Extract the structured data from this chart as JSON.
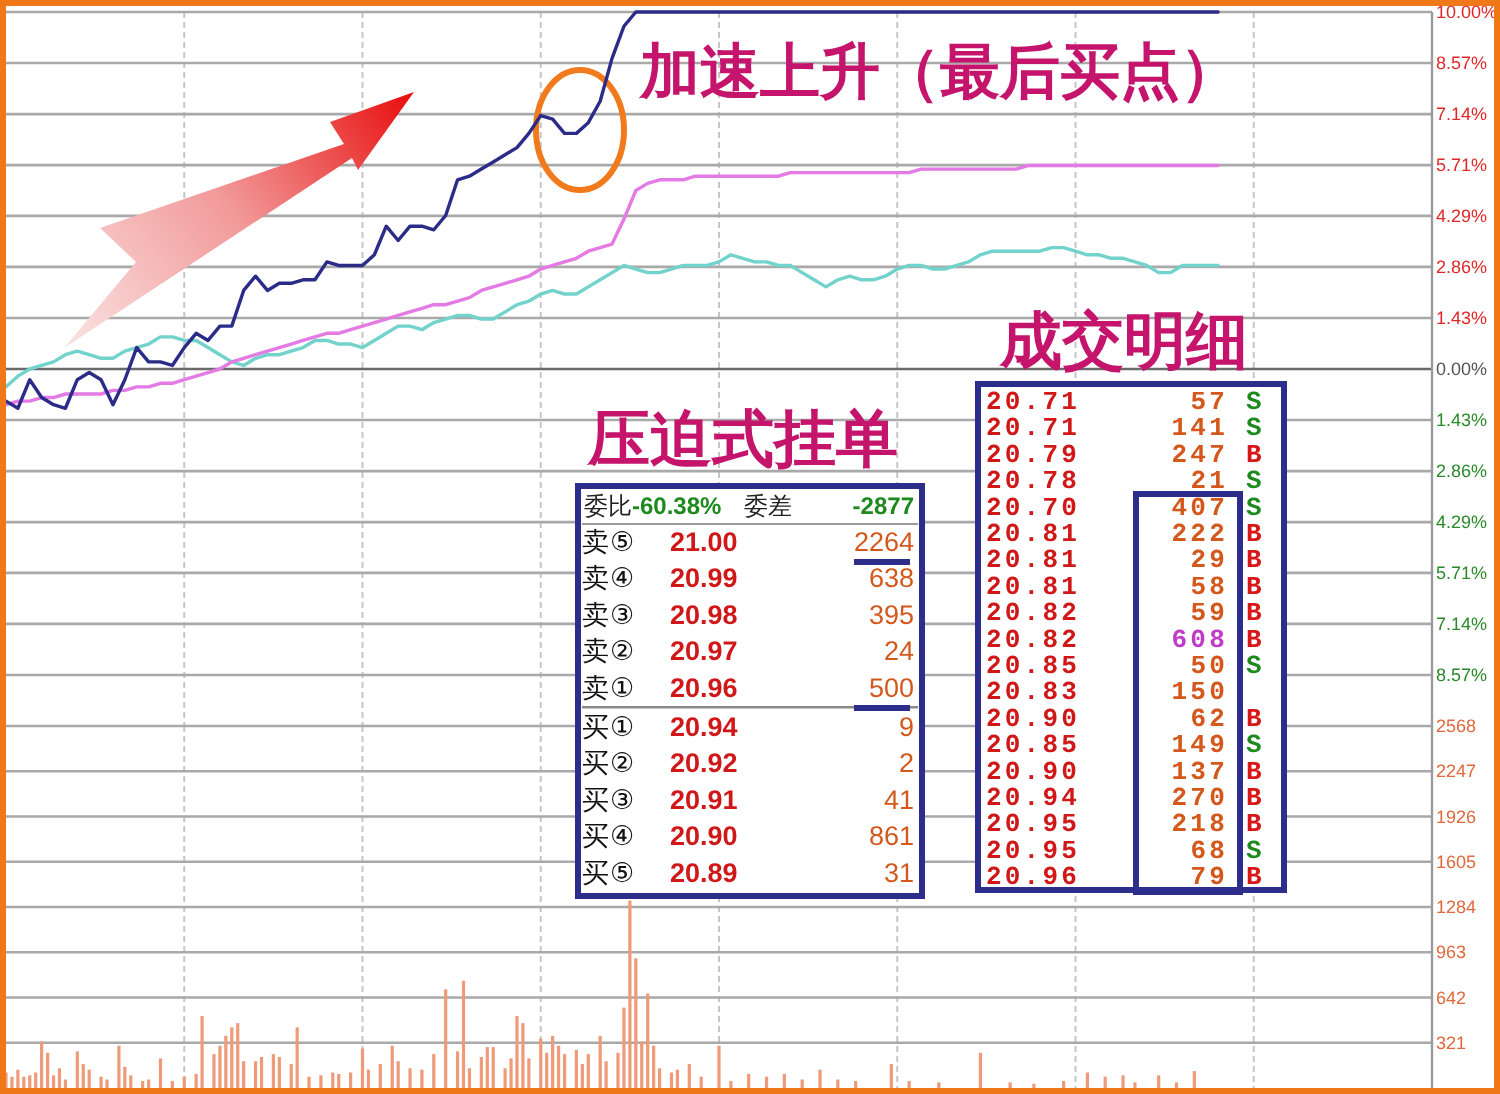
{
  "chart_data": [
    {
      "type": "line",
      "annotations": [
        "加速上升（最后买点）"
      ],
      "categories": [
        null,
        null,
        null,
        null,
        null,
        null,
        null,
        null,
        null,
        null,
        null,
        null,
        null,
        null,
        null,
        null,
        null,
        null,
        null,
        null,
        null,
        null,
        null,
        null,
        null,
        null,
        null,
        null,
        null,
        null,
        null,
        null,
        null,
        null,
        null,
        null,
        null,
        null,
        null,
        null,
        null,
        null,
        null,
        null,
        null,
        null,
        null,
        null,
        null,
        null,
        null,
        null,
        null,
        null,
        null,
        null,
        null,
        null,
        null,
        null,
        null,
        null,
        null,
        null,
        null,
        null,
        null,
        null,
        null,
        null,
        null,
        null,
        null,
        null,
        null,
        null,
        null,
        null,
        null,
        null,
        null,
        null,
        null,
        null,
        null,
        null,
        null,
        null,
        null,
        null,
        null,
        null,
        null,
        null,
        null,
        null,
        null,
        null,
        null,
        null,
        null,
        null,
        null,
        null,
        null,
        null,
        null,
        null,
        null,
        null,
        null,
        null,
        null,
        null,
        null,
        null,
        null,
        null,
        null,
        null,
        null
      ],
      "ylim": [
        -10,
        10
      ],
      "yticks": [
        {
          "value": 10,
          "label": "10.00%"
        },
        {
          "value": 8.57,
          "label": "8.57%"
        },
        {
          "value": 7.14,
          "label": "7.14%"
        },
        {
          "value": 5.71,
          "label": "5.71%"
        },
        {
          "value": 4.29,
          "label": "4.29%"
        },
        {
          "value": 2.86,
          "label": "2.86%"
        },
        {
          "value": 1.43,
          "label": "1.43%"
        },
        {
          "value": 0,
          "label": "0.00%"
        },
        {
          "value": -1.43,
          "label": "1.43%"
        },
        {
          "value": -2.86,
          "label": "2.86%"
        },
        {
          "value": -4.29,
          "label": "4.29%"
        },
        {
          "value": -5.71,
          "label": "5.71%"
        },
        {
          "value": -7.14,
          "label": "7.14%"
        },
        {
          "value": -8.57,
          "label": "8.57%"
        }
      ],
      "grid": true,
      "tick_labels": "y",
      "series": [
        {
          "color": "#72d2cc",
          "values": [
            -0.5,
            -0.2,
            0.0,
            0.1,
            0.2,
            0.4,
            0.5,
            0.4,
            0.3,
            0.3,
            0.5,
            0.6,
            0.7,
            0.9,
            0.9,
            0.8,
            0.8,
            0.6,
            0.4,
            0.2,
            0.1,
            0.3,
            0.4,
            0.4,
            0.5,
            0.6,
            0.8,
            0.8,
            0.7,
            0.7,
            0.6,
            0.8,
            1.0,
            1.2,
            1.2,
            1.1,
            1.3,
            1.4,
            1.5,
            1.5,
            1.4,
            1.4,
            1.6,
            1.8,
            1.9,
            2.1,
            2.2,
            2.1,
            2.1,
            2.3,
            2.5,
            2.7,
            2.9,
            2.8,
            2.7,
            2.7,
            2.8,
            2.9,
            2.9,
            2.9,
            3.0,
            3.2,
            3.1,
            3.0,
            3.0,
            2.9,
            2.9,
            2.7,
            2.5,
            2.3,
            2.5,
            2.6,
            2.5,
            2.5,
            2.6,
            2.8,
            2.9,
            2.9,
            2.8,
            2.8,
            2.9,
            3.0,
            3.2,
            3.3,
            3.3,
            3.3,
            3.3,
            3.3,
            3.4,
            3.4,
            3.3,
            3.2,
            3.2,
            3.1,
            3.1,
            3.0,
            2.9,
            2.7,
            2.7,
            2.9,
            2.9,
            2.9,
            2.9,
            null,
            null,
            null,
            null,
            null,
            null,
            null,
            null,
            null,
            null,
            null,
            null,
            null,
            null,
            null,
            null,
            null,
            null
          ]
        },
        {
          "color": "#e47ae4",
          "values": [
            -1.0,
            -0.9,
            -0.9,
            -0.8,
            -0.8,
            -0.7,
            -0.7,
            -0.7,
            -0.7,
            -0.6,
            -0.6,
            -0.5,
            -0.5,
            -0.4,
            -0.4,
            -0.3,
            -0.2,
            -0.1,
            0,
            0.2,
            0.3,
            0.4,
            0.5,
            0.6,
            0.7,
            0.8,
            0.9,
            1.0,
            1.0,
            1.1,
            1.2,
            1.3,
            1.4,
            1.5,
            1.6,
            1.7,
            1.8,
            1.8,
            1.9,
            2.0,
            2.2,
            2.3,
            2.4,
            2.5,
            2.6,
            2.8,
            2.9,
            3.0,
            3.1,
            3.3,
            3.4,
            3.5,
            4.2,
            5.0,
            5.2,
            5.3,
            5.3,
            5.3,
            5.4,
            5.4,
            5.4,
            5.4,
            5.4,
            5.4,
            5.4,
            5.4,
            5.5,
            5.5,
            5.5,
            5.5,
            5.5,
            5.5,
            5.5,
            5.5,
            5.5,
            5.5,
            5.5,
            5.6,
            5.6,
            5.6,
            5.6,
            5.6,
            5.6,
            5.6,
            5.6,
            5.6,
            5.7,
            5.7,
            5.7,
            5.7,
            5.7,
            5.7,
            5.7,
            5.7,
            5.7,
            5.7,
            5.7,
            5.7,
            5.7,
            5.7,
            5.7,
            5.7,
            5.7,
            null,
            null,
            null,
            null,
            null,
            null,
            null,
            null,
            null,
            null,
            null,
            null,
            null,
            null,
            null,
            null,
            null,
            null
          ]
        },
        {
          "color": "#2b2b88",
          "values": [
            -0.9,
            -1.1,
            -0.3,
            -0.8,
            -1.0,
            -1.1,
            -0.3,
            -0.1,
            -0.3,
            -1.0,
            -0.3,
            0.6,
            0.2,
            0.2,
            0.1,
            0.6,
            1.0,
            0.8,
            1.2,
            1.2,
            2.2,
            2.6,
            2.2,
            2.4,
            2.4,
            2.5,
            2.5,
            3.0,
            2.9,
            2.9,
            2.9,
            3.2,
            4.0,
            3.6,
            4.0,
            4.0,
            3.9,
            4.3,
            5.3,
            5.4,
            5.6,
            5.8,
            6.0,
            6.2,
            6.6,
            7.1,
            7.0,
            6.6,
            6.6,
            6.9,
            7.5,
            8.7,
            9.6,
            10,
            10,
            10,
            10,
            10,
            10,
            10,
            10,
            10,
            10,
            10,
            10,
            10,
            10,
            10,
            10,
            10,
            10,
            10,
            10,
            10,
            10,
            10,
            10,
            10,
            10,
            10,
            10,
            10,
            10,
            10,
            10,
            10,
            10,
            10,
            10,
            10,
            10,
            10,
            10,
            10,
            10,
            10,
            10,
            10,
            10,
            10,
            10,
            10,
            10,
            null,
            null,
            null,
            null,
            null,
            null,
            null,
            null,
            null,
            null,
            null,
            null,
            null,
            null,
            null,
            null,
            null,
            null
          ]
        }
      ]
    },
    {
      "type": "bar",
      "color": "#ef9a78",
      "categories": [
        null,
        null,
        null,
        null,
        null,
        null,
        null,
        null,
        null,
        null,
        null,
        null,
        null,
        null,
        null,
        null,
        null,
        null,
        null,
        null,
        null,
        null,
        null,
        null,
        null,
        null,
        null,
        null,
        null,
        null,
        null,
        null,
        null,
        null,
        null,
        null,
        null,
        null,
        null,
        null,
        null,
        null,
        null,
        null,
        null,
        null,
        null,
        null,
        null,
        null,
        null,
        null,
        null,
        null,
        null,
        null,
        null,
        null,
        null,
        null,
        null,
        null,
        null,
        null,
        null,
        null,
        null,
        null,
        null,
        null,
        null,
        null,
        null,
        null,
        null,
        null,
        null,
        null,
        null,
        null,
        null,
        null,
        null,
        null,
        null,
        null,
        null,
        null,
        null,
        null,
        null,
        null,
        null,
        null,
        null,
        null,
        null,
        null,
        null,
        null,
        null,
        null,
        null,
        null,
        null,
        null,
        null,
        null,
        null,
        null,
        null,
        null,
        null,
        null,
        null,
        null,
        null,
        null,
        null,
        null,
        null,
        null,
        null,
        null,
        null,
        null,
        null,
        null,
        null,
        null,
        null,
        null,
        null,
        null,
        null,
        null,
        null,
        null,
        null,
        null,
        null,
        null,
        null,
        null,
        null,
        null,
        null,
        null,
        null,
        null,
        null,
        null,
        null,
        null,
        null,
        null,
        null,
        null,
        null,
        null,
        null,
        null,
        null,
        null,
        null,
        null,
        null,
        null,
        null,
        null,
        null,
        null,
        null,
        null,
        null,
        null,
        null,
        null,
        null,
        null,
        null,
        null,
        null,
        null,
        null,
        null,
        null,
        null,
        null,
        null,
        null,
        null,
        null,
        null,
        null,
        null,
        null,
        null,
        null,
        null,
        null,
        null,
        null,
        null,
        null,
        null,
        null,
        null,
        null,
        null,
        null,
        null,
        null,
        null,
        null,
        null,
        null,
        null,
        null,
        null,
        null,
        null,
        null,
        null,
        null,
        null,
        null,
        null,
        null,
        null,
        null,
        null,
        null,
        null,
        null,
        null,
        null,
        null,
        null,
        null,
        null
      ],
      "ylim": [
        0,
        2568
      ],
      "yticks": [
        321,
        642,
        963,
        1284,
        1605,
        1926,
        2247,
        2568
      ],
      "grid": true,
      "tick_labels": "y",
      "values": [
        110,
        80,
        130,
        80,
        90,
        110,
        330,
        250,
        90,
        140,
        60,
        null,
        260,
        170,
        130,
        null,
        80,
        60,
        null,
        300,
        150,
        90,
        null,
        50,
        60,
        null,
        210,
        null,
        50,
        null,
        80,
        null,
        100,
        510,
        null,
        240,
        300,
        370,
        430,
        460,
        190,
        null,
        190,
        220,
        null,
        240,
        220,
        null,
        170,
        430,
        null,
        80,
        null,
        90,
        null,
        110,
        100,
        null,
        110,
        null,
        280,
        130,
        null,
        170,
        null,
        300,
        190,
        null,
        140,
        null,
        130,
        null,
        240,
        null,
        700,
        null,
        260,
        760,
        140,
        null,
        220,
        290,
        290,
        null,
        140,
        210,
        510,
        460,
        210,
        null,
        350,
        250,
        370,
        300,
        240,
        null,
        270,
        170,
        240,
        null,
        370,
        190,
        null,
        250,
        570,
        1330,
        920,
        330,
        670,
        300,
        140,
        null,
        110,
        130,
        null,
        170,
        null,
        80,
        null,
        null,
        300,
        null,
        50,
        null,
        null,
        100,
        null,
        null,
        80,
        null,
        null,
        100,
        null,
        null,
        60,
        null,
        null,
        130,
        null,
        null,
        60,
        null,
        null,
        50,
        null,
        null,
        null,
        null,
        null,
        170,
        null,
        null,
        50,
        null,
        null,
        null,
        null,
        40,
        null,
        null,
        null,
        null,
        null,
        null,
        250,
        null,
        null,
        null,
        null,
        40,
        null,
        null,
        null,
        30,
        null,
        null,
        null,
        null,
        50,
        null,
        null,
        null,
        110,
        null,
        null,
        80,
        null,
        null,
        90,
        null,
        40,
        null,
        null,
        null,
        90,
        null,
        null,
        40,
        null,
        null,
        120,
        null,
        null,
        null,
        null,
        null,
        null,
        null,
        null,
        null,
        null,
        null,
        null,
        null,
        null,
        null,
        null,
        null,
        null,
        null,
        null,
        null,
        null,
        null,
        null,
        null,
        null,
        null,
        null,
        null,
        null,
        null,
        null,
        null,
        null,
        null,
        null,
        null,
        null,
        null,
        null
      ]
    },
    {
      "type": "other",
      "title": "压迫式挂单",
      "annotations": [
        "委比",
        "-60.38%",
        "委差",
        "-2877"
      ],
      "data_labels": true,
      "categories": [
        "卖⑤",
        "卖④",
        "卖③",
        "卖②",
        "卖①",
        "买①",
        "买②",
        "买③",
        "买④",
        "买⑤"
      ],
      "series": [
        {
          "color": "#d01818",
          "values": [
            21.0,
            20.99,
            20.98,
            20.97,
            20.96,
            20.94,
            20.92,
            20.91,
            20.9,
            20.89
          ],
          "value_labels": [
            "21.00",
            "20.99",
            "20.98",
            "20.97",
            "20.96",
            "20.94",
            "20.92",
            "20.91",
            "20.90",
            "20.89"
          ]
        },
        {
          "color": "#d4581c",
          "values": [
            2264,
            638,
            395,
            24,
            500,
            9,
            2,
            41,
            861,
            31
          ]
        }
      ]
    },
    {
      "type": "other",
      "title": "成交明细",
      "data_labels": true,
      "annotations": [
        "20.83",
        "150"
      ],
      "categories": [
        "S",
        "S",
        "B",
        "S",
        "S",
        "B",
        "B",
        "B",
        "B",
        "B",
        "S",
        null,
        "B",
        "S",
        "B",
        "B",
        "B",
        "S",
        "B"
      ],
      "colors": [
        "#1e8a1e",
        "#1e8a1e",
        "#d81818",
        "#1e8a1e",
        "#1e8a1e",
        "#d81818",
        "#d81818",
        "#d81818",
        "#d81818",
        "#d81818",
        "#1e8a1e",
        null,
        "#d81818",
        "#1e8a1e",
        "#d81818",
        "#d81818",
        "#d81818",
        "#1e8a1e",
        "#d81818"
      ],
      "series": [
        {
          "color": "#d01818",
          "values": [
            20.71,
            20.71,
            20.79,
            20.78,
            20.7,
            20.81,
            20.81,
            20.81,
            20.82,
            20.82,
            20.85,
            null,
            20.9,
            20.85,
            20.9,
            20.94,
            20.95,
            20.95,
            20.96
          ],
          "value_labels": [
            "20.71",
            "20.71",
            "20.79",
            "20.78",
            "20.70",
            "20.81",
            "20.81",
            "20.81",
            "20.82",
            "20.82",
            "20.85",
            null,
            "20.90",
            "20.85",
            "20.90",
            "20.94",
            "20.95",
            "20.95",
            "20.96"
          ]
        },
        {
          "color": "#d4581c",
          "colors": [
            null,
            null,
            null,
            null,
            null,
            null,
            null,
            null,
            null,
            "#c03cc8",
            null,
            null,
            null,
            null,
            null,
            null,
            null,
            null,
            null
          ],
          "values": [
            57,
            141,
            247,
            21,
            407,
            222,
            29,
            58,
            59,
            608,
            50,
            null,
            62,
            149,
            137,
            270,
            218,
            68,
            79
          ]
        }
      ]
    }
  ]
}
